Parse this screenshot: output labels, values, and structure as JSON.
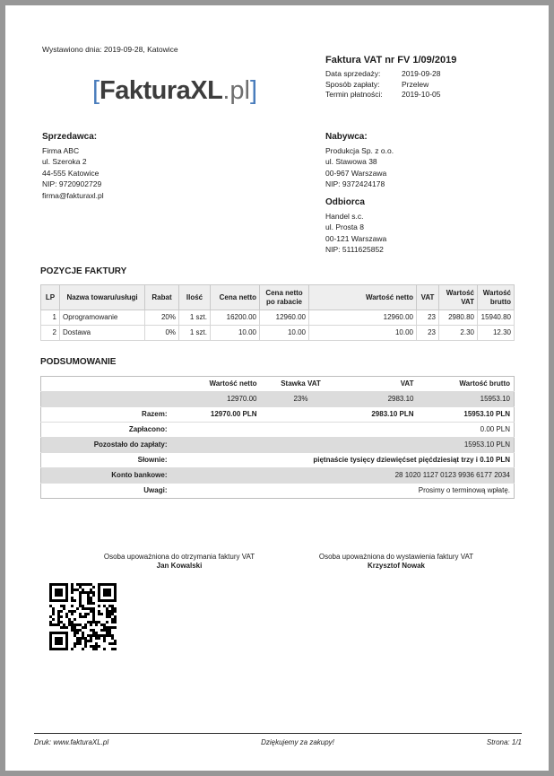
{
  "issued_line": "Wystawiono dnia: 2019-09-28, Katowice",
  "logo": {
    "bracket_left": "[",
    "name": "FakturaXL",
    "suffix": ".pl",
    "bracket_right": "]"
  },
  "invoice_header": {
    "title": "Faktura VAT nr FV 1/09/2019",
    "rows": [
      {
        "label": "Data sprzedaży:",
        "value": "2019-09-28"
      },
      {
        "label": "Sposób zapłaty:",
        "value": "Przelew"
      },
      {
        "label": "Termin płatności:",
        "value": "2019-10-05"
      }
    ]
  },
  "seller": {
    "heading": "Sprzedawca:",
    "lines": [
      "Firma ABC",
      "ul. Szeroka 2",
      "44-555 Katowice",
      "NIP: 9720902729",
      "firma@fakturaxl.pl"
    ]
  },
  "buyer": {
    "heading": "Nabywca:",
    "lines": [
      "Produkcja Sp. z o.o.",
      "ul. Stawowa 38",
      "00-967 Warszawa",
      "NIP: 9372424178"
    ]
  },
  "recipient": {
    "heading": "Odbiorca",
    "lines": [
      "Handel s.c.",
      "ul. Prosta 8",
      "00-121 Warszawa",
      "NIP: 5111625852"
    ]
  },
  "items_section": {
    "heading": "POZYCJE FAKTURY",
    "columns": [
      "LP",
      "Nazwa towaru/usługi",
      "Rabat",
      "Ilość",
      "Cena netto",
      "Cena netto po rabacie",
      "Wartość netto",
      "VAT",
      "Wartość VAT",
      "Wartość brutto"
    ],
    "rows": [
      [
        "1",
        "Oprogramowanie",
        "20%",
        "1 szt.",
        "16200.00",
        "12960.00",
        "12960.00",
        "23",
        "2980.80",
        "15940.80"
      ],
      [
        "2",
        "Dostawa",
        "0%",
        "1 szt.",
        "10.00",
        "10.00",
        "10.00",
        "23",
        "2.30",
        "12.30"
      ]
    ]
  },
  "summary_section": {
    "heading": "PODSUMOWANIE",
    "columns": [
      "",
      "Wartość netto",
      "Stawka VAT",
      "VAT",
      "Wartość brutto"
    ],
    "vat_row": [
      "",
      "12970.00",
      "23%",
      "2983.10",
      "15953.10"
    ],
    "total_row": {
      "label": "Razem:",
      "netto": "12970.00 PLN",
      "vat": "2983.10 PLN",
      "brutto": "15953.10 PLN"
    },
    "detail_rows": [
      {
        "label": "Zapłacono:",
        "value": "0.00 PLN"
      },
      {
        "label": "Pozostało do zapłaty:",
        "value": "15953.10 PLN"
      },
      {
        "label": "Słownie:",
        "value": "piętnaście tysięcy dziewięćset pięćdziesiąt trzy i 0.10 PLN"
      },
      {
        "label": "Konto bankowe:",
        "value": "28 1020 1127 0123 9936 6177 2034"
      },
      {
        "label": "Uwagi:",
        "value": "Prosimy o terminową wpłatę."
      }
    ]
  },
  "signatures": {
    "left": {
      "caption": "Osoba upoważniona do otrzymania faktury VAT",
      "name": "Jan Kowalski"
    },
    "right": {
      "caption": "Osoba upoważniona do wystawienia faktury VAT",
      "name": "Krzysztof Nowak"
    }
  },
  "footer": {
    "left": "Druk: www.fakturaXL.pl",
    "center": "Dziękujemy za zakupy!",
    "right": "Strona: 1/1"
  },
  "colors": {
    "accent_blue": "#4a7dbc",
    "frame_gray": "#979797",
    "table_header_bg": "#eeeeee",
    "row_alt_bg": "#dcdcdc"
  }
}
